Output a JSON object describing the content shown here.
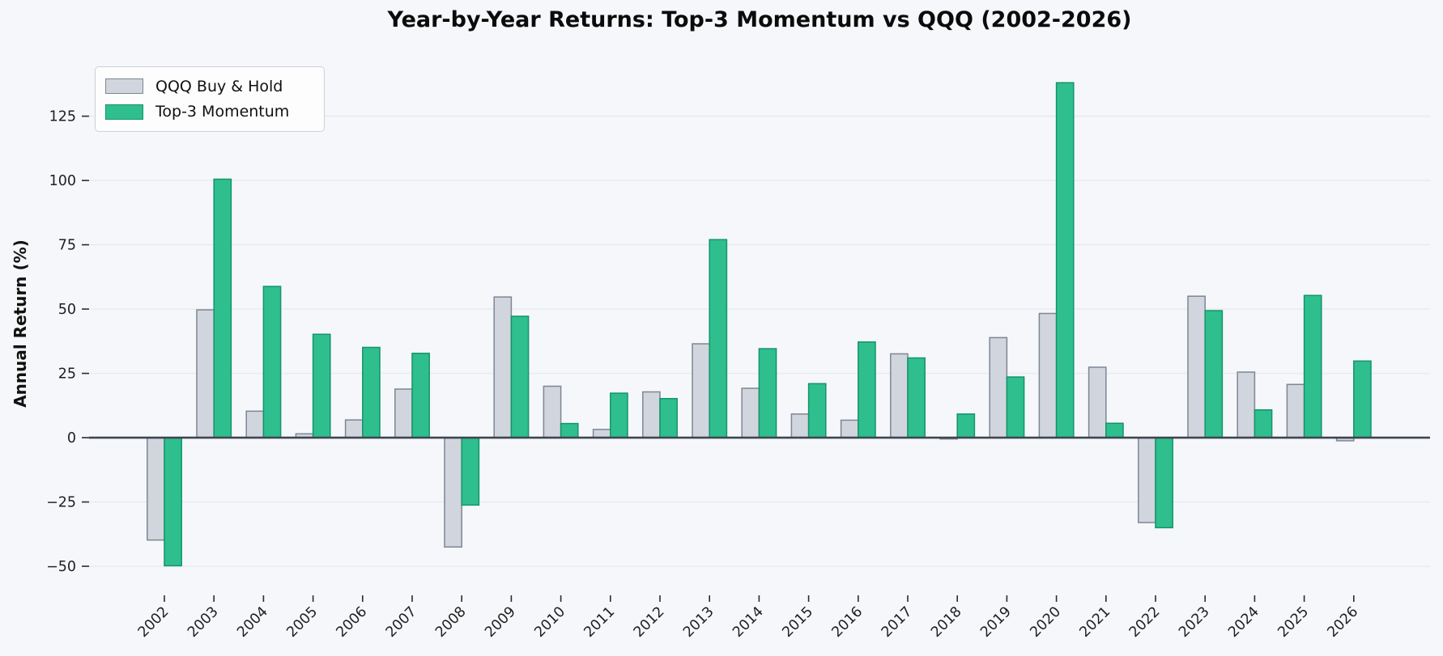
{
  "chart_data": {
    "type": "bar",
    "title": "Year-by-Year Returns: Top-3 Momentum vs QQQ (2002-2026)",
    "xlabel": "",
    "ylabel": "Annual Return (%)",
    "categories": [
      "2002",
      "2003",
      "2004",
      "2005",
      "2006",
      "2007",
      "2008",
      "2009",
      "2010",
      "2011",
      "2012",
      "2013",
      "2014",
      "2015",
      "2016",
      "2017",
      "2018",
      "2019",
      "2020",
      "2021",
      "2022",
      "2023",
      "2024",
      "2025",
      "2026"
    ],
    "series": [
      {
        "name": "QQQ Buy & Hold",
        "values": [
          -39.8,
          49.7,
          10.3,
          1.5,
          6.9,
          18.9,
          -42.5,
          54.7,
          20.0,
          3.2,
          17.8,
          36.5,
          19.2,
          9.2,
          6.8,
          32.6,
          -0.5,
          38.9,
          48.3,
          27.4,
          -33.0,
          55.0,
          25.5,
          20.7,
          -1.2
        ]
      },
      {
        "name": "Top-3 Momentum",
        "values": [
          -49.8,
          100.5,
          58.8,
          40.2,
          35.1,
          32.8,
          -26.2,
          47.2,
          5.5,
          17.3,
          15.2,
          77.0,
          34.6,
          21.0,
          37.2,
          31.0,
          9.2,
          23.6,
          138.0,
          5.6,
          -35.0,
          49.4,
          10.8,
          55.3,
          29.8
        ]
      }
    ],
    "yticks": [
      125,
      100,
      75,
      50,
      25,
      0,
      -25,
      -50
    ],
    "ylim": [
      -61.3,
      151.3
    ],
    "grid": true,
    "legend_position": "upper left",
    "colors": {
      "background": "#f5f7fa",
      "grid": "#e7eaef",
      "zero_axis": "#3e4552",
      "tick": "#2b2b2b",
      "text": "#1f1f1f",
      "qqq_fill": "#d1d5dd",
      "qqq_edge": "#7e8695",
      "momentum_fill": "#2fbf8e",
      "momentum_edge": "#149469"
    }
  }
}
